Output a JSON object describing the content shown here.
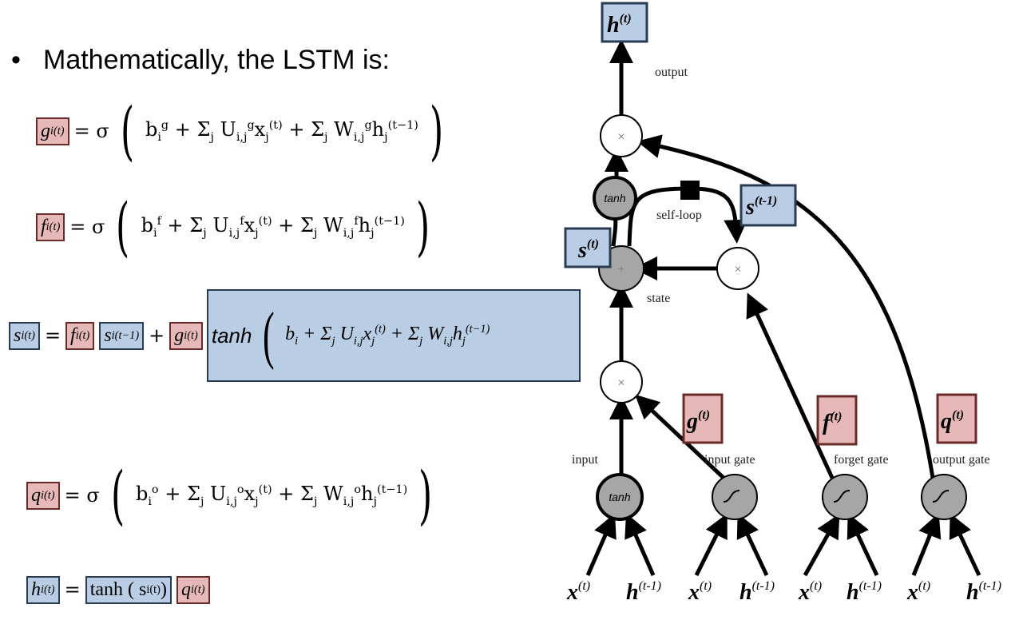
{
  "bullet": "Mathematically, the LSTM is:",
  "eq": {
    "g_lhs": "g",
    "g_rhs": "= σ ( b + Σ U x + Σ W h )",
    "f_lhs": "f",
    "f_rhs": "= σ ( b + Σ U x + Σ W h )",
    "s_lhs": "s",
    "s_f": "f",
    "s_sprev": "s",
    "s_g": "g",
    "s_tanh": "tanh",
    "s_body": "( b + Σ U x + Σ W h )",
    "q_lhs": "q",
    "q_rhs": "= σ ( b + Σ U x + Σ W h )",
    "h_lhs": "h",
    "h_tanh": "tanh ( s )",
    "h_q": "q"
  },
  "diagram": {
    "h_top": "h",
    "h_top_sup": "(t)",
    "output": "output",
    "tanh_top": "tanh",
    "self_loop": "self-loop",
    "s_prev": "s",
    "s_prev_sup": "(t-1)",
    "s_t": "s",
    "s_t_sup": "(t)",
    "state": "state",
    "g": "g",
    "g_sup": "(t)",
    "f": "f",
    "f_sup": "(t)",
    "q": "q",
    "q_sup": "(t)",
    "input": "input",
    "input_gate": "input gate",
    "forget_gate": "forget gate",
    "output_gate": "output gate",
    "tanh_bottom": "tanh",
    "x": "x",
    "x_sup": "(t)",
    "h": "h",
    "h_sup": "(t-1)"
  }
}
